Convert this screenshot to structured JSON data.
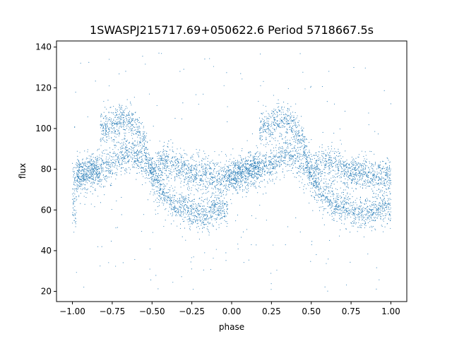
{
  "chart_data": {
    "type": "scatter",
    "title": "1SWASPJ215717.69+050622.6 Period 5718667.5s",
    "xlabel": "phase",
    "ylabel": "flux",
    "xlim": [
      -1.1,
      1.1
    ],
    "ylim": [
      15,
      143
    ],
    "x_ticks": [
      -1.0,
      -0.75,
      -0.5,
      -0.25,
      0.0,
      0.25,
      0.5,
      0.75,
      1.0
    ],
    "x_tick_labels": [
      "−1.00",
      "−0.75",
      "−0.50",
      "−0.25",
      "0.00",
      "0.25",
      "0.50",
      "0.75",
      "1.00"
    ],
    "y_ticks": [
      20,
      40,
      60,
      80,
      100,
      120,
      140
    ],
    "y_tick_labels": [
      "20",
      "40",
      "60",
      "80",
      "100",
      "120",
      "140"
    ],
    "grid": false,
    "legend": "none",
    "marker_color": "#1f77b4",
    "series": [
      {
        "phase_x": [
          -1.0,
          -0.95,
          -0.9,
          -0.85,
          -0.8,
          -0.75,
          -0.7,
          -0.65,
          -0.6,
          -0.55,
          -0.5,
          -0.45,
          -0.4,
          -0.35,
          -0.3,
          -0.25,
          -0.2,
          -0.15,
          -0.1,
          -0.05,
          0.0,
          0.05,
          0.1,
          0.15,
          0.2,
          0.25,
          0.3,
          0.35,
          0.4,
          0.45,
          0.5,
          0.55,
          0.6,
          0.65,
          0.7,
          0.75,
          0.8,
          0.85,
          0.9,
          0.95,
          1.0
        ],
        "flux_band_centers": [
          [
            75,
            60
          ],
          [
            77
          ],
          [
            79
          ],
          [
            80
          ],
          [
            81,
            100
          ],
          [
            82,
            102
          ],
          [
            86,
            104
          ],
          [
            88,
            104
          ],
          [
            85,
            100
          ],
          [
            82,
            94
          ],
          [
            80,
            75
          ],
          [
            82,
            70
          ],
          [
            84,
            66
          ],
          [
            82,
            62
          ],
          [
            80,
            61
          ],
          [
            78,
            59
          ],
          [
            78,
            58
          ],
          [
            78,
            58
          ],
          [
            76,
            60
          ],
          [
            76,
            61
          ],
          [
            77
          ],
          [
            78
          ],
          [
            79
          ],
          [
            80
          ],
          [
            81,
            100
          ],
          [
            82,
            102
          ],
          [
            86,
            104
          ],
          [
            88,
            104
          ],
          [
            85,
            100
          ],
          [
            82,
            94
          ],
          [
            80,
            75
          ],
          [
            82,
            70
          ],
          [
            84,
            66
          ],
          [
            82,
            62
          ],
          [
            80,
            61
          ],
          [
            78,
            59
          ],
          [
            78,
            58
          ],
          [
            78,
            58
          ],
          [
            76,
            60
          ],
          [
            76,
            61
          ],
          [
            77,
            60
          ]
        ]
      }
    ]
  }
}
